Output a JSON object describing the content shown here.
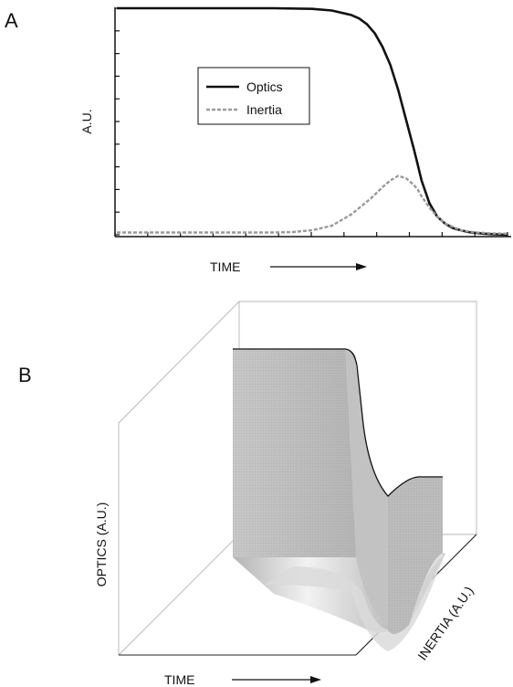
{
  "chart_data": [
    {
      "panel": "A",
      "type": "line",
      "xlabel": "TIME",
      "ylabel": "A.U.",
      "legend_position": "center",
      "grid": false,
      "xlim": [
        0,
        100
      ],
      "ylim": [
        0,
        1
      ],
      "series": [
        {
          "name": "Optics",
          "color": "#111111",
          "style": "solid",
          "x": [
            0,
            10,
            20,
            30,
            40,
            50,
            55,
            60,
            62,
            64,
            66,
            68,
            70,
            72,
            74,
            76,
            77,
            78,
            80,
            82,
            84,
            86,
            88,
            90,
            92,
            94,
            96,
            100
          ],
          "y": [
            1.0,
            1.0,
            1.0,
            1.0,
            1.0,
            0.997,
            0.99,
            0.97,
            0.955,
            0.93,
            0.89,
            0.83,
            0.75,
            0.64,
            0.51,
            0.38,
            0.31,
            0.24,
            0.14,
            0.08,
            0.05,
            0.03,
            0.02,
            0.012,
            0.008,
            0.005,
            0.003,
            0.0
          ]
        },
        {
          "name": "Inertia",
          "color": "#9a9a9a",
          "style": "dashed",
          "x": [
            0,
            10,
            20,
            30,
            40,
            45,
            50,
            55,
            60,
            65,
            68,
            70,
            72,
            74,
            76,
            77,
            78,
            80,
            82,
            84,
            86,
            88,
            90,
            92,
            94,
            96,
            100
          ],
          "y": [
            0.01,
            0.01,
            0.01,
            0.01,
            0.01,
            0.012,
            0.02,
            0.04,
            0.09,
            0.16,
            0.21,
            0.24,
            0.26,
            0.25,
            0.22,
            0.2,
            0.17,
            0.12,
            0.08,
            0.05,
            0.035,
            0.02,
            0.015,
            0.01,
            0.008,
            0.006,
            0.005
          ]
        }
      ],
      "legend": [
        "Optics",
        "Inertia"
      ]
    },
    {
      "panel": "B",
      "type": "surface",
      "xlabel": "TIME",
      "ylabel": "OPTICS (A.U.)",
      "zlabel": "INERTIA (A.U.)",
      "legend_position": "none",
      "grid": false
    }
  ],
  "panels": {
    "a_letter": "A",
    "b_letter": "B"
  }
}
